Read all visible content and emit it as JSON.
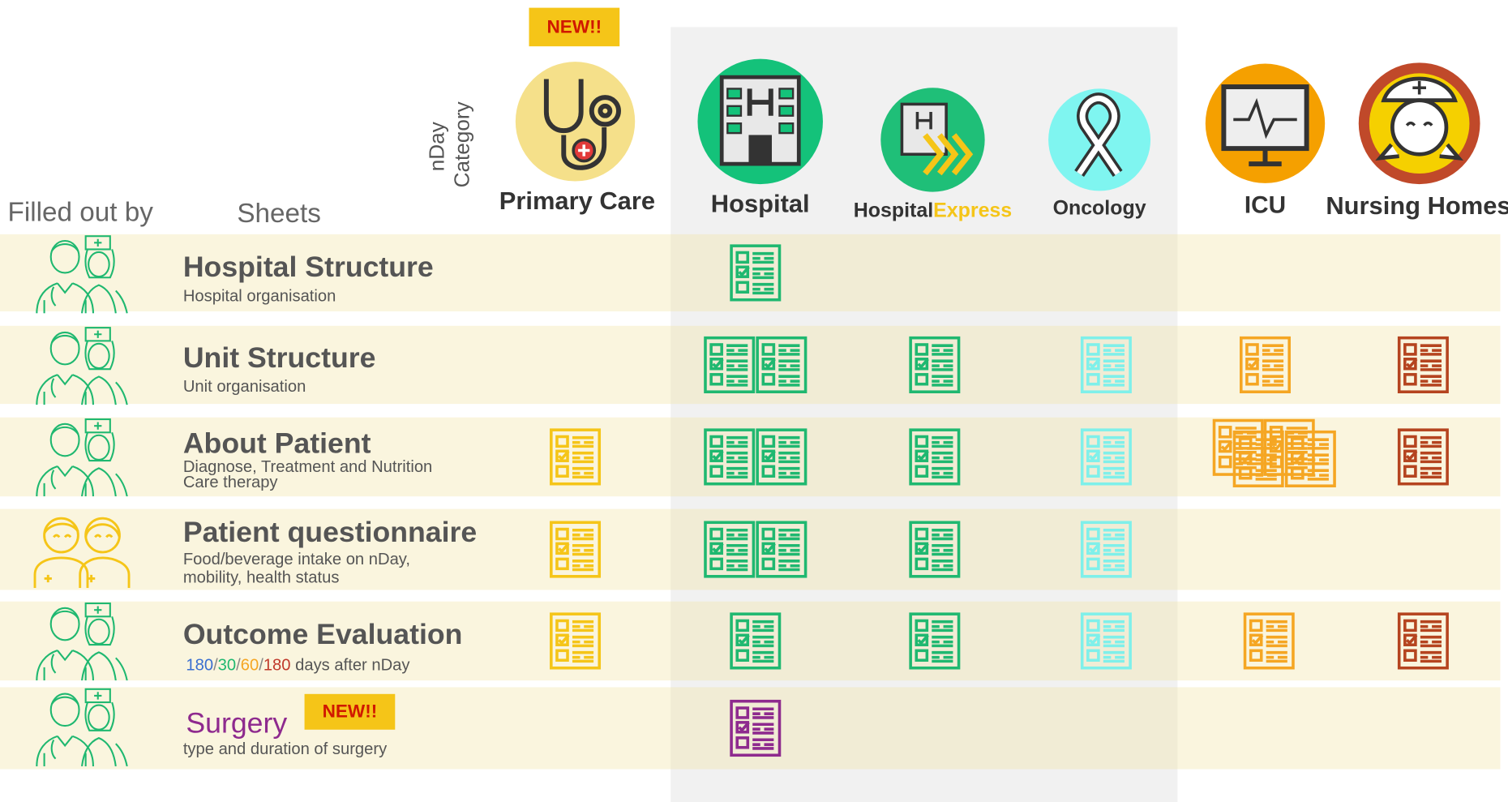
{
  "header": {
    "badge": "NEW!!",
    "category_label": [
      "nDay",
      "Category"
    ],
    "filled_out_by": "Filled out by",
    "sheets": "Sheets"
  },
  "columns": [
    {
      "label": "Primary Care"
    },
    {
      "label": "Hospital"
    },
    {
      "label_parts": [
        "Hospital",
        "Express"
      ]
    },
    {
      "label": "Oncology"
    },
    {
      "label": "ICU"
    },
    {
      "label": "Nursing Homes"
    }
  ],
  "rows": [
    {
      "title": "Hospital Structure",
      "subtitle": [
        "Hospital organisation"
      ]
    },
    {
      "title": "Unit Structure",
      "subtitle": [
        "Unit organisation"
      ]
    },
    {
      "title": "About Patient",
      "subtitle": [
        "Diagnose, Treatment and Nutrition",
        "Care therapy"
      ]
    },
    {
      "title": "Patient questionnaire",
      "subtitle": [
        "Food/beverage intake on nDay,",
        "mobility, health status"
      ]
    },
    {
      "title": "Outcome Evaluation",
      "subtitle_parts": [
        "180",
        "/",
        "30",
        "/",
        "60",
        "/",
        "180",
        " days after nDay"
      ]
    },
    {
      "title": "Surgery",
      "badge": "NEW!!",
      "subtitle": [
        "type and duration of surgery"
      ]
    }
  ]
}
